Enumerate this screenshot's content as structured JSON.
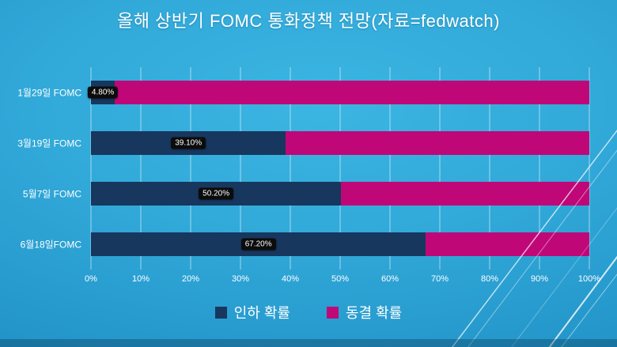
{
  "title": "올해 상반기 FOMC 통화정책 전망(자료=fedwatch)",
  "colors": {
    "cut": "#17375E",
    "freeze": "#C00778",
    "background_light": "#3BB5E2",
    "background_dark": "#1B7FB2",
    "grid": "rgba(255,255,255,0.55)",
    "label_box": "#0C0C0C",
    "text": "#FFFFFF"
  },
  "chart_data": {
    "type": "bar",
    "orientation": "horizontal",
    "stacked": true,
    "title": "올해 상반기 FOMC 통화정책 전망(자료=fedwatch)",
    "categories": [
      "1월29일 FOMC",
      "3월19일 FOMC",
      "5월7일 FOMC",
      "6월18일FOMC"
    ],
    "series": [
      {
        "name": "인하 확률",
        "color": "#17375E",
        "values": [
          4.8,
          39.1,
          50.2,
          67.2
        ]
      },
      {
        "name": "동결 확률",
        "color": "#C00778",
        "values": [
          95.2,
          60.9,
          49.8,
          32.8
        ]
      }
    ],
    "data_labels": [
      "4.80%",
      "39.10%",
      "50.20%",
      "67.20%"
    ],
    "x_ticks": [
      "0%",
      "10%",
      "20%",
      "30%",
      "40%",
      "50%",
      "60%",
      "70%",
      "80%",
      "90%",
      "100%"
    ],
    "xlim": [
      0,
      100
    ],
    "grid": "vertical",
    "legend_position": "bottom"
  }
}
